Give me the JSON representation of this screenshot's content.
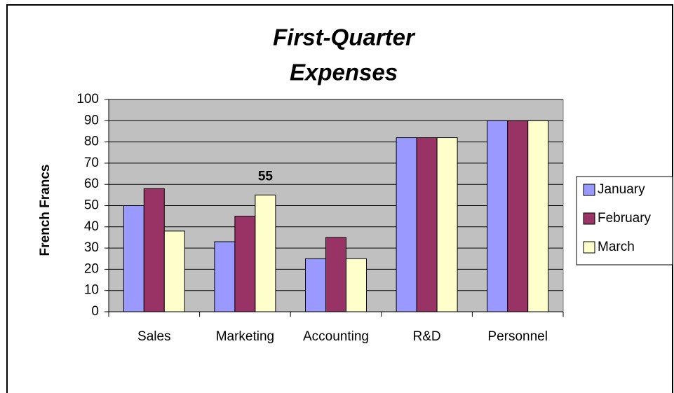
{
  "chart_data": {
    "type": "bar",
    "title": [
      "First-Quarter",
      "Expenses"
    ],
    "y_label": "French Francs",
    "categories": [
      "Sales",
      "Marketing",
      "Accounting",
      "R&D",
      "Personnel"
    ],
    "series": [
      {
        "name": "January",
        "color": "#9999ff",
        "values": [
          50,
          33,
          25,
          82,
          90
        ]
      },
      {
        "name": "February",
        "color": "#993366",
        "values": [
          58,
          45,
          35,
          82,
          90
        ]
      },
      {
        "name": "March",
        "color": "#ffffcc",
        "values": [
          38,
          55,
          25,
          82,
          90
        ]
      }
    ],
    "data_label": {
      "series": 2,
      "index": 1
    },
    "ylim": [
      0,
      100
    ],
    "yticks": [
      0,
      10,
      20,
      30,
      40,
      50,
      60,
      70,
      80,
      90,
      100
    ],
    "grid": true,
    "plot_background": "#c0c0c0",
    "legend": "right"
  }
}
